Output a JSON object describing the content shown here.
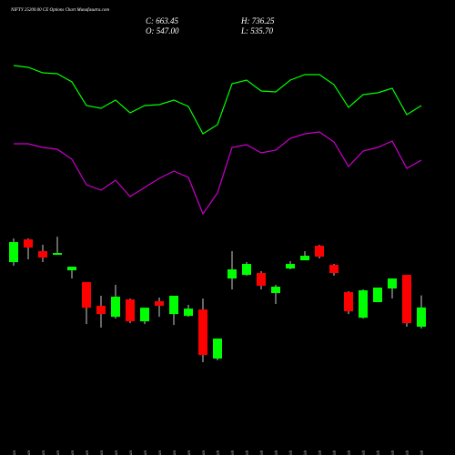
{
  "chart_data": {
    "type": "candlestick",
    "title": "NIFTY 25200.00 CE Options Chart Munafasutra.com",
    "close_label": "C: 663.45",
    "open_label": "O: 547.00",
    "high_label": "H: 736.25",
    "low_label": "L: 535.70",
    "x": [
      "12 Jan",
      "13 Jan",
      "14 Jan",
      "16 Jan",
      "20 Jan",
      "21 Jan",
      "22 Jan",
      "23 Jan",
      "24 Jan",
      "27 Jan",
      "28 Jan",
      "29 Jan",
      "30 Jan",
      "31 Jan",
      "01 Feb",
      "03 Feb",
      "04 Feb",
      "05 Feb",
      "06 Feb",
      "07 Feb",
      "10 Feb",
      "11 Feb",
      "12 Feb",
      "13 Feb",
      "14 Feb",
      "17 Feb",
      "18 Feb",
      "19 Feb",
      "20 Feb"
    ],
    "open": [
      937.5,
      1075,
      1003.5,
      981.5,
      888,
      816.5,
      673.5,
      607,
      712,
      579.5,
      701,
      623.5,
      612.5,
      651,
      354.5,
      838.5,
      860.5,
      871.5,
      750.5,
      899,
      948.5,
      1036.5,
      921,
      756,
      601.5,
      695.5,
      778,
      860.5,
      547
    ],
    "high": [
      1080.5,
      1080.5,
      1042,
      1091,
      910,
      816.5,
      734,
      800,
      717.5,
      662,
      723,
      734,
      679,
      717.5,
      475.5,
      1003.5,
      937.5,
      882.5,
      800,
      943,
      1003.5,
      1042,
      926.5,
      761.5,
      772.5,
      783.5,
      838.5,
      860.5,
      736.25
    ],
    "low": [
      915.5,
      954,
      937.5,
      981.5,
      838.5,
      563,
      541.5,
      596,
      568.5,
      563,
      607,
      557.5,
      607,
      332.5,
      343.5,
      772.5,
      855,
      772.5,
      684.5,
      893.5,
      948.5,
      959.5,
      855,
      623.5,
      596,
      695.5,
      717.5,
      547,
      535.7
    ],
    "close": [
      1058.5,
      1025.5,
      965,
      992.5,
      910,
      662,
      623.5,
      728.5,
      579.5,
      662,
      673.5,
      734,
      656.5,
      376.5,
      475.5,
      893.5,
      926.5,
      794.5,
      789,
      926.5,
      976,
      970.5,
      871.5,
      640,
      767,
      783.5,
      838.5,
      568.5,
      663.45
    ],
    "up_color": "#00ff00",
    "down_color": "#ff0000",
    "ylim": [
      100,
      1150
    ],
    "overlay_ylim": [
      0,
      300
    ],
    "overlays": [
      {
        "color": "#00ff00",
        "values": [
          228,
          226,
          220,
          219,
          210,
          184,
          181,
          190,
          176,
          184,
          185,
          190,
          183,
          153,
          163,
          208,
          212,
          200,
          199,
          212,
          218,
          218,
          207,
          182,
          196,
          198,
          203,
          174,
          184
        ]
      },
      {
        "color": "#cc00cc",
        "values": [
          142,
          142,
          138,
          136,
          125,
          97,
          91,
          102,
          84,
          94,
          104,
          112,
          105,
          65,
          88,
          138,
          141,
          132,
          135,
          148,
          153,
          155,
          144,
          117,
          134,
          138,
          145,
          115,
          124
        ]
      }
    ]
  }
}
